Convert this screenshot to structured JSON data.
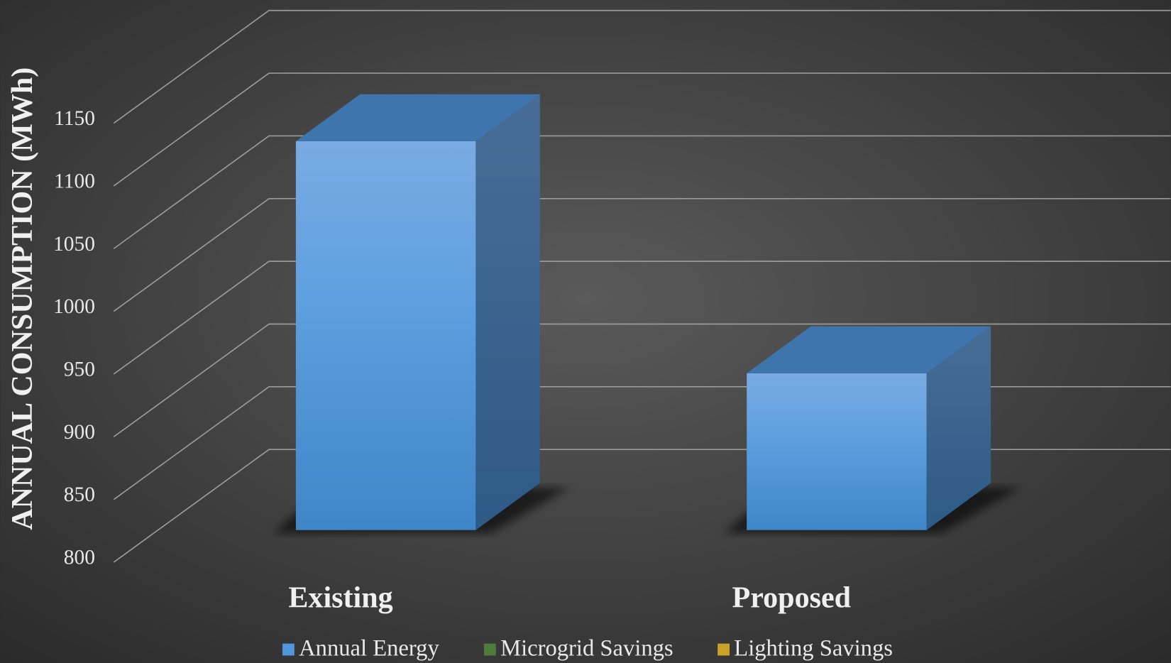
{
  "chart_data": {
    "type": "bar3d_stacked",
    "y_axis_label": "ANNUAL CONSUMPTION (MWh)",
    "categories": [
      "Existing",
      "Proposed"
    ],
    "series": [
      {
        "name": "Annual Energy",
        "color": "#4f96dc",
        "values": [
          1110,
          925
        ]
      },
      {
        "name": "Microgrid Savings",
        "color": "#4e7a3a",
        "values": [
          0,
          0
        ]
      },
      {
        "name": "Lighting Savings",
        "color": "#c9a227",
        "values": [
          0,
          0
        ]
      }
    ],
    "ylim": [
      800,
      1150
    ],
    "yticks": [
      800,
      850,
      900,
      950,
      1000,
      1050,
      1100,
      1150
    ],
    "grid": true
  }
}
